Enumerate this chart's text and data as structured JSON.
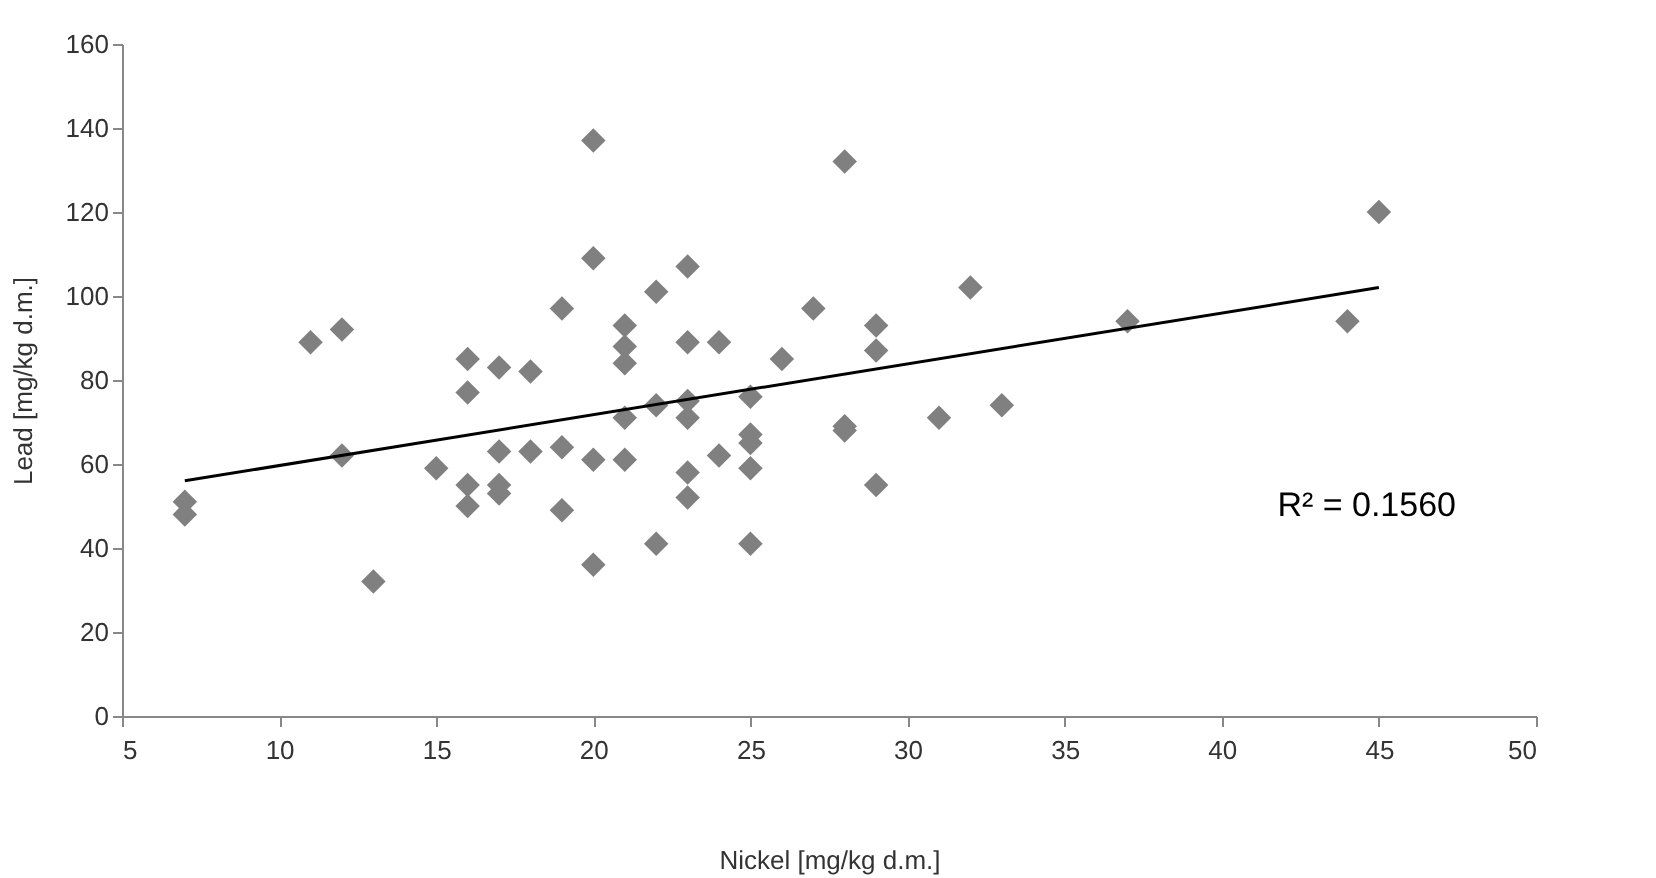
{
  "chart_data": {
    "type": "scatter",
    "xlabel": "Nickel [mg/kg d.m.]",
    "ylabel": "Lead  [mg/kg d.m.]",
    "xlim": [
      5,
      50
    ],
    "xticks": [
      5,
      10,
      15,
      20,
      25,
      30,
      35,
      40,
      45,
      50
    ],
    "ylim": [
      0,
      160
    ],
    "yticks": [
      0,
      20,
      40,
      60,
      80,
      100,
      120,
      140,
      160
    ],
    "grid": false,
    "annotations": [
      "R² = 0.1560"
    ],
    "series": [
      {
        "type": "scatter",
        "marker": "diamond",
        "color": "#808080",
        "x": [
          7,
          7,
          11,
          12,
          12,
          13,
          15,
          16,
          16,
          16,
          16,
          17,
          17,
          17,
          17,
          18,
          18,
          19,
          19,
          19,
          20,
          20,
          20,
          20,
          21,
          21,
          21,
          21,
          21,
          22,
          22,
          22,
          23,
          23,
          23,
          23,
          23,
          23,
          24,
          24,
          25,
          25,
          25,
          25,
          25,
          26,
          27,
          28,
          28,
          28,
          29,
          29,
          29,
          31,
          32,
          33,
          37,
          44,
          45
        ],
        "values": [
          51,
          48,
          89,
          92,
          62,
          32,
          59,
          85,
          77,
          55,
          50,
          83,
          63,
          55,
          53,
          82,
          63,
          97,
          64,
          49,
          137,
          109,
          61,
          36,
          93,
          88,
          84,
          71,
          61,
          101,
          74,
          41,
          107,
          89,
          75,
          71,
          58,
          52,
          89,
          62,
          76,
          67,
          65,
          59,
          41,
          85,
          97,
          132,
          69,
          68,
          93,
          87,
          55,
          71,
          102,
          74,
          94,
          94,
          120
        ]
      },
      {
        "type": "line",
        "marker": "none",
        "line_style": "solid",
        "color": "#000000",
        "x": [
          7,
          45
        ],
        "values": [
          56,
          102
        ]
      }
    ]
  }
}
